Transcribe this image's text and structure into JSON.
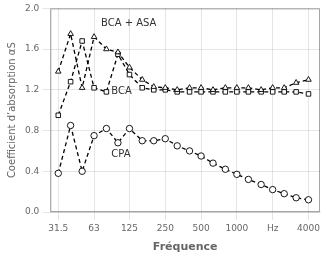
{
  "chart_data": {
    "type": "line",
    "xlabel": "Fréquence",
    "ylabel": "Coefficient d’absorption αS",
    "log": "x",
    "grid": true,
    "xlim": [
      27,
      5000
    ],
    "xticks": [
      31.5,
      63,
      125,
      250,
      500,
      1000,
      {
        "value": 2000,
        "label": "Hz"
      },
      4000
    ],
    "ylim": [
      0.0,
      2.0
    ],
    "yticks": [
      {
        "value": 0.0,
        "label": "0.0"
      },
      0.4,
      0.8,
      1.2,
      1.6,
      {
        "value": 2.0,
        "label": "2.0"
      }
    ],
    "x": [
      31.5,
      40,
      50,
      63,
      80,
      100,
      125,
      160,
      200,
      250,
      315,
      400,
      500,
      630,
      800,
      1000,
      1250,
      1600,
      2000,
      2500,
      3150,
      4000
    ],
    "series": [
      {
        "color": "#000000",
        "marker": "triangle",
        "line_style": "dashed",
        "values": [
          1.38,
          1.75,
          1.22,
          1.72,
          1.6,
          1.57,
          1.42,
          1.3,
          1.23,
          1.22,
          1.2,
          1.22,
          1.22,
          1.2,
          1.22,
          1.22,
          1.22,
          1.2,
          1.22,
          1.22,
          1.27,
          1.3
        ]
      },
      {
        "color": "#000000",
        "marker": "square",
        "line_style": "dashed",
        "values": [
          0.95,
          1.28,
          1.68,
          1.22,
          1.18,
          1.55,
          1.35,
          1.22,
          1.2,
          1.2,
          1.18,
          1.18,
          1.18,
          1.18,
          1.18,
          1.18,
          1.18,
          1.18,
          1.18,
          1.18,
          1.18,
          1.16
        ]
      },
      {
        "color": "#000000",
        "marker": "circle",
        "line_style": "dashed",
        "values": [
          0.38,
          0.85,
          0.4,
          0.75,
          0.82,
          0.68,
          0.82,
          0.7,
          0.7,
          0.72,
          0.65,
          0.6,
          0.55,
          0.48,
          0.42,
          0.37,
          0.32,
          0.27,
          0.22,
          0.18,
          0.14,
          0.12
        ]
      }
    ],
    "annotations": [
      {
        "text": "BCA + ASA",
        "x": 72,
        "y": 1.8
      },
      {
        "text": "BCA",
        "x": 88,
        "y": 1.14
      },
      {
        "text": "CPA",
        "x": 88,
        "y": 0.52
      }
    ]
  }
}
